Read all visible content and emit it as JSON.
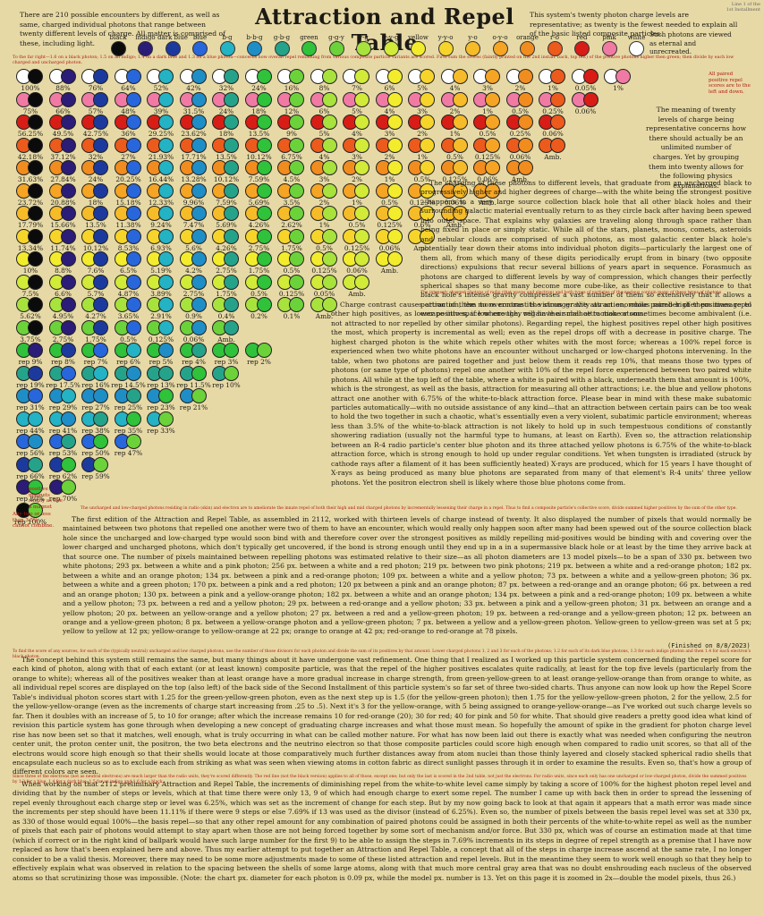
{
  "title": "Attraction and Repel Table",
  "corner": "Line 1 of the 1st Installment",
  "intro_left": "There are 210 possible encounters by different, as well as same, charged individual photons that range between twenty different levels of charge. All matter is comprised of these, including light.",
  "intro_right": "This system's twenty photon charge levels are representative; as twenty is the fewest needed to explain all of the basic listed composite particles.",
  "legend": [
    {
      "name": "black",
      "color": "#0b0b0b"
    },
    {
      "name": "indigo",
      "color": "#2b1c78"
    },
    {
      "name": "dark blue",
      "color": "#1c3a9e"
    },
    {
      "name": "blue",
      "color": "#2866dc"
    },
    {
      "name": "b-g",
      "color": "#23b3c4"
    },
    {
      "name": "b-b-g",
      "color": "#1f8ec6"
    },
    {
      "name": "g-b-g",
      "color": "#25a38a"
    },
    {
      "name": "green",
      "color": "#2fc23a"
    },
    {
      "name": "g-g-y",
      "color": "#6cd23a"
    },
    {
      "name": "y-g",
      "color": "#a8e23c"
    },
    {
      "name": "y-y-g",
      "color": "#d2ea38"
    },
    {
      "name": "yellow",
      "color": "#f3ec2c"
    },
    {
      "name": "y-y-o",
      "color": "#f6d42a"
    },
    {
      "name": "y-o",
      "color": "#f6bb28"
    },
    {
      "name": "o-y-o",
      "color": "#f5a424"
    },
    {
      "name": "orange",
      "color": "#f18c1e"
    },
    {
      "name": "r-o",
      "color": "#ec5a1c"
    },
    {
      "name": "red",
      "color": "#d81d16"
    },
    {
      "name": "pink",
      "color": "#f07aa4"
    },
    {
      "name": "white",
      "color": "#ffffff"
    }
  ],
  "legend_note": "Such photons are viewed as eternal and unrecreated.",
  "red_line_1": "To the far right—1.6 on a black photon; 1.5 on an indigo; 1.4 on a dark blue and 1.3 on a blue photon—concerns how overall repel remaining from various composite particle variants are scored. First sum the scores (faintly printed on the 2nd install. back, top left) of the positive photons higher then green; then divide by each low charged and uncharged photon.",
  "right_note_top": "All paired positive repel scores are to the left and down.",
  "meaning_text": "The meaning of twenty levels of charge being representative concerns how there should actually be an unlimited number of charges. Yet by grouping them into twenty allows for the following physics explanations.",
  "red_line_2": "The intensely charged photons of radio (that waves and electron) and both types of particles of the nucleus contain many of these types of photons",
  "red_line_3": "The uncharged and low-charged photons residing in radio (skin) and electron are to ameliorate the innate repel of both their high and mid charged photons by incrementally lessening their charge in a repel. Thus to find a composite particle's collective score, divide summed higher positives by the sum of the other type.",
  "grid_rows": [
    [
      "100%",
      "88%",
      "76%",
      "64%",
      "52%",
      "42%",
      "32%",
      "24%",
      "16%",
      "8%",
      "7%",
      "6%",
      "5%",
      "4%",
      "3%",
      "2%",
      "1%",
      "0.05%",
      "1%"
    ],
    [
      "75%",
      "66%",
      "57%",
      "48%",
      "39%",
      "31.5%",
      "24%",
      "18%",
      "12%",
      "6%",
      "5%",
      "4%",
      "3%",
      "2%",
      "1%",
      "0.5%",
      "0.25%",
      "0.06%"
    ],
    [
      "56.25%",
      "49.5%",
      "42.75%",
      "36%",
      "29.25%",
      "23.62%",
      "18%",
      "13.5%",
      "9%",
      "5%",
      "4%",
      "3%",
      "2%",
      "1%",
      "0.5%",
      "0.25%",
      "0.06%"
    ],
    [
      "42.18%",
      "37.12%",
      "32%",
      "27%",
      "21.93%",
      "17.71%",
      "13.5%",
      "10.12%",
      "6.75%",
      "4%",
      "3%",
      "2%",
      "1%",
      "0.5%",
      "0.125%",
      "0.06%",
      "Amb."
    ],
    [
      "31.63%",
      "27.84%",
      "24%",
      "20.25%",
      "16.44%",
      "13.28%",
      "10.12%",
      "7.59%",
      "4.5%",
      "3%",
      "2%",
      "1%",
      "0.5%",
      "0.125%",
      "0.06%",
      "Amb."
    ],
    [
      "23.72%",
      "20.88%",
      "18%",
      "15.18%",
      "12.33%",
      "9.96%",
      "7.59%",
      "5.69%",
      "3.5%",
      "2%",
      "1%",
      "0.5%",
      "0.125%",
      "0.06%",
      "Amb."
    ],
    [
      "17.79%",
      "15.66%",
      "13.5%",
      "11.38%",
      "9.24%",
      "7.47%",
      "5.69%",
      "4.26%",
      "2.62%",
      "1%",
      "0.5%",
      "0.125%",
      "0.6%",
      "Amb."
    ],
    [
      "13.34%",
      "11.74%",
      "10.12%",
      "8.53%",
      "6.93%",
      "5.6%",
      "4.26%",
      "2.75%",
      "1.75%",
      "0.5%",
      "0.125%",
      "0.06%",
      "Amb."
    ],
    [
      "10%",
      "8.8%",
      "7.6%",
      "6.5%",
      "5.19%",
      "4.2%",
      "2.75%",
      "1.75%",
      "0.5%",
      "0.125%",
      "0.06%",
      "Amb."
    ],
    [
      "7.5%",
      "6.6%",
      "5.7%",
      "4.87%",
      "3.89%",
      "2.75%",
      "1.75%",
      "0.5%",
      "0.125%",
      "0.05%",
      "Amb."
    ],
    [
      "5.62%",
      "4.95%",
      "4.27%",
      "3.65%",
      "2.91%",
      "0.9%",
      "0.4%",
      "0.2%",
      "0.1%",
      "Amb."
    ],
    [
      "3.75%",
      "2.75%",
      "1.75%",
      "0.5%",
      "0.125%",
      "0.06%",
      "Amb."
    ],
    [
      "rep 9%",
      "rep 8%",
      "rep 7%",
      "rep 6%",
      "rep 5%",
      "rep 4%",
      "rep 3%",
      "rep 2%"
    ],
    [
      "rep 19%",
      "rep 17.5%",
      "rep 16%",
      "rep 14.5%",
      "rep 13%",
      "rep 11.5%",
      "rep 10%"
    ],
    [
      "rep 31%",
      "rep 29%",
      "rep 27%",
      "rep 25%",
      "rep 23%",
      "rep 21%"
    ],
    [
      "rep 44%",
      "rep 41%",
      "rep 38%",
      "rep 35%",
      "rep 33%"
    ],
    [
      "rep 56%",
      "rep 53%",
      "rep 50%",
      "rep 47%"
    ],
    [
      "rep 66%",
      "rep 62%",
      "rep 59%"
    ],
    [
      "rep 80%",
      "rep 70%"
    ],
    [
      "rep 100%"
    ]
  ],
  "right_col": [
    "The charging of these photons to different levels, that graduate from an uncharged black to progressively higher and higher degrees of charge—with the white being the strongest positive—happens in a very large source collection black hole that all other black holes and their surrounding galactic material eventually return to as they circle back after having been spewed into outer space. That explains why galaxies are traveling along through space rather than being fixed in place or simply static. While all of the stars, planets, moons, comets, asteroids and nebular clouds are comprised of such photons, as most galactic center black hole's potentially tear down their atoms into individual photon digits—particularly the largest one of them all, from which many of these digits periodically erupt from in binary (two opposite directions) expulsions that recur several billions of years apart in sequence. Forasmuch as photons are charged to different levels by way of compression, which changes their perfectly spherical shapes so that many become more cube-like, as their collective resistance to that black hole's intense gravity compresses a vast number of them so extensively that it allows a portion of them to overcome its vicious gravity as an enormous number of them manage to escape into space where they regain their chance to make atoms.",
    "Charge contrast causes attraction, the more contrast the stronger the attraction; while paired higher positives repel other high positives, as lower positives, if low enough, will have a small attraction or sometimes become ambivalent (i.e. not attracted to nor repelled by other similar photons). Regarding repel, the highest positives repel other high positives the most, which property is incremental as well; even as the repel drops off with a decrease in positive charge. The highest charged photon is the white which repels other whites with the most force; whereas a 100% repel force is experienced when two white photons have an encounter without uncharged or low-charged photons intervening. In the table, when two photons are paired together and just below them it reads rep 10%, that means those two types of photons (or same type of photons) repel one another with 10% of the repel force experienced between two paired white photons. All while at the top left of the table, where a white is paired with a black, underneath them that amount is 100%, which is the strongest, as well as the basis, attraction for measuring all other attractions; i.e. the blue and yellow photons attract one another with 6.75% of the white-to-black attraction force. Please bear in mind with these make subatomic particles automatically—with no outside assistance of any kind—that an attraction between certain pairs can be too weak to hold the two together in such a chaotic, what's essentially even a very violent, subatimic particle environment; whereas less than 3.5% of the white-to-black attraction is not likely to hold up in such tempestuous conditions of constantly showering radiation (usually not the harmful type to humans, at least on Earth). Even so, the attraction relationship between an R-4 radio particle's center blue photon and its three attached yellow photons is 6.75% of the white-to-black attraction force, which is strong enough to hold up under regular conditions. Yet when tungsten is irradiated (struck by cathode rays after a filament of it has been sufficiently heated) X-rays are produced, which for 15 years I have thought of X-rays as being produced as many blue photons are separated from many of that element's R-4 units' three yellow photons. Yet the positron electron shell is likely where those blue photons come from."
  ],
  "bottom": [
    "The first edition of the Attraction and Repel Table, as assembled in 2112, worked with thirteen levels of charge instead of twenty. It also displayed the number of pixels that would normally be maintained between two photons that repelled one another were two of them to have an encounter, which would really only happen soon after many had been spewed out of the source collection black hole since the uncharged and low-charged type would soon bind with and therefore cover over the strongest positives as mildly repelling mid-positives would be binding with and covering over the lower charged and uncharged photons, which don't typically get uncovered, if the bond is strong enough until they end up in a in a supermassive black hole or at least by the time they arrive back at that source one. The number of pixels maintained between repelling photons was estimated relative to their size—as all photon diameters are 13 model pixels—to be a span of 330 px. between two white photons; 293 px. between a white and a pink photon; 256 px. between a white and a red photon; 219 px. between two pink photons; 219 px. between a white and a red-orange photon; 182 px. between a white and an orange photon; 134 px. between a pink and a red-orange photon; 109 px. between a white and a yellow photon; 73 px. between a white and a yellow-green photon; 36 px. between a white and a green photon; 170 px. between a pink and a red photon; 120 px between a pink and an orange photon; 87 px. between a red-orange and an orange photon; 66 px. between a red and an orange photon; 130 px. between a pink and a yellow-orange photon; 182 px. between a white and an orange photon; 134 px. between a pink and a red-orange photon; 109 px. between a white and a yellow photon; 73 px. between a red and a yellow photon; 29 px. between a red-orange and a yellow photon; 33 px. between a pink and a yellow-green photon; 31 px. between an orange and a yellow photon; 20 px. between an yellow-orange and a yellow photon; 27 px. between a red and a yellow-green photon; 19 px. between a red-orange and a yellow-green photon; 12 px. between an orange and a yellow-green photon; 8 px. between a yellow-orange photon and a yellow-green photon; 7 px. between a yellow and a yellow-green photon. Yellow-green to yellow-green was set at 5 px; yellow to yellow at 12 px; yellow-orange to yellow-orange at 22 px; orange to orange at 42 px; red-orange to red-orange at 78 pixels.",
    "The concept behind this system still remains the same, but many things about it have undergone vast refinement. One thing that I realized as I worked up this particle system concerned finding the repel score for each kind of photon, along with that of each extant (or at least known) composite particle, was that the repel of the higher positives escalates quite radically, at least for the top five levels (particularly from the orange to white); whereas all of the positives weaker than at least orange have a more gradual increase in charge strength, from green-yellow-green to at least orange-yellow-orange than from orange to white, as all individual repel scores are displayed on the top (also left) of the back side of the Second Installment of this particle system's so far set of three two-sided charts. Thus anyone can now look up how the Repel Score Table's individual photon scores start with 1.25 for the green-yellow-green photon, even as the next step up is 1.5 (for the yellow-green photon); then 1.75 for the yellow-yellow-green photon, 2 for the yellow, 2.5 for the yellow-yellow-orange (even as the increments of charge start increasing from .25 to .5). Next it's 3 for the yellow-orange, with 5 being assigned to orange-yellow-orange—as I've worked out such charge levels so far. Then it doubles with an increase of 5, to 10 for orange; after which the increase remains 10 for red-orange (20); 30 for red; 40 for pink and 50 for white. That should give readers a pretty good idea what kind of revision this particle system has gone through when developing a new concept of graduating charge increases and what those must mean. So hopefully the amount of spike in the gradient for photon charge level rise has now been set so that it matches, well enough, what is truly occurring in what can be called mother nature. For what has now been laid out there is exactly what was needed when configuring the neutron center unit, the proton center unit, the positron, the two beta electrons and the neutrino electron so that those composite particles could score high enough when compared to radio unit scores, so that all of the electrons would score high enough so that their shells would locate at those comparatively much further distances away from atom nuclei than those thinly layered and closely stacked spherical radio shells that encapsulate each nucleus so as to exclude each from striking as what was seen when viewing atoms in cotton fabric as direct sunlight passes through it in order to examine the results. Even so, that's how a group of different colors are seen.",
    "When working on that 2112 preliminary Attraction and Repel Table, the increments of diminishing repel from the white-to-white level came simply by taking a score of 100% for the highest photon repel level and dividing that by the number of steps or levels, which at that time there were only 13, 9 of which had enough charge to exert some repel. The number I came up with back then in order to spread the lessening of repel evenly throughout each charge step or level was 6.25%, which was set as the increment of change for each step. But by my now going back to look at that again it appears that a math error was made since the increments per step should have been 11.11% if there were 9 steps or else 7.69% if 13 was used as the divisor (instead of 6.25%). Even so, the number of pixels between the basis repel level was set at 330 px, as 330 of those would equal 100%—the basis repel—so that any other repel amount for any combination of paired photons could be assigned in both their percents of the white-to-white repel as well as the number of pixels that each pair of photons would attempt to stay apart when those are not being forced together by some sort of mechanism and/or force. But 330 px, which was of course an estimation made at that time (which if correct or in the right kind of ballpark would have such large number for the first 9) to be able to assign the steps in 7.69% increments in its steps in degree of repel strength as a premise that I have now replaced as how that's been explained here and above. Thus my earlier attempt to put together an Attraction and Repel Table, a concept that all of the steps in charge increase ascend at the same rate, I no longer consider to be a valid thesis. Moreover, there may need to be some more adjustments made to some of these listed attraction and repel levels. But in the meantime they seem to work well enough so that they help to effectively explain what was observed in relation to the spacing between the shells of some large atoms, along with that much more central gray area that was no doubt enshrouding each nucleus of the observed atoms so that scrutinizing those was impossible. (Note: the chart px. diameter for each photon is 0.09 px, while the model px. number is 13. Yet on this page it is zoomed in 2x—double the model pixels, thus 26.)"
  ],
  "finished": "(Finished on 8/8/2023)",
  "red_line_4": "To find the score of any sources, for each of the (typically neutral) uncharged and low charged photons, use the number of those divisors for each photon and divide the sum of its positives by that amount. Lower charged photons 1, 2 and 3 for each of the photons; 1.2 for each of its dark blue photons, 1.3 for each indigo photon and then 1.4 for each electron's black photon.",
  "red_line_5": "Since three of the electrons (not as neutral electrons) are much larger than the radio units, they're scored differently. The red line (not the black version) applies to all of those, except one; but only the last is scored in the 2nd table, not just the electrons. For radio units, since each only has one uncharged or low-charged photon, divide the summed positives by 1.3 for a blue, 1.4 for a dark blue, 1.5 for an indigo and 1.6 for a black.",
  "small_notes": {
    "any_two": "Any two or less than 3.5% cannot combine.",
    "positive_magnet": "positive magnets simply as like a magnet",
    "amb_note": "Amb. = ambivalent",
    "scores_for": "scores for higher positive repels",
    "two_five": "2.5 rep 2%"
  }
}
